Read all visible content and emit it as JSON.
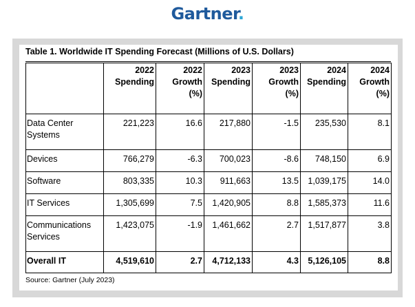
{
  "brand": {
    "logo_text": "Gartner",
    "logo_dot": "."
  },
  "table": {
    "title": "Table 1. Worldwide IT Spending Forecast (Millions of U.S. Dollars)",
    "headers": [
      "",
      "2022 Spending",
      "2022 Growth (%)",
      "2023 Spending",
      "2023 Growth (%)",
      "2024 Spending",
      "2024 Growth (%)"
    ],
    "rows": [
      [
        "Data Center Systems",
        "221,223",
        "16.6",
        "217,880",
        "-1.5",
        "235,530",
        "8.1"
      ],
      [
        "Devices",
        "766,279",
        "-6.3",
        "700,023",
        "-8.6",
        "748,150",
        "6.9"
      ],
      [
        "Software",
        "803,335",
        "10.3",
        "911,663",
        "13.5",
        "1,039,175",
        "14.0"
      ],
      [
        "IT Services",
        "1,305,699",
        "7.5",
        "1,420,905",
        "8.8",
        "1,585,373",
        "11.6"
      ],
      [
        "Communications Services",
        "1,423,075",
        "-1.9",
        "1,461,662",
        "2.7",
        "1,517,877",
        "3.8"
      ],
      [
        "Overall IT",
        "4,519,610",
        "2.7",
        "4,712,133",
        "4.3",
        "5,126,105",
        "8.8"
      ]
    ],
    "source": "Source: Gartner (July 2023)"
  },
  "colors": {
    "logo": "#1f5a9c",
    "logo_dot": "#2ea7d6",
    "frame": "#d8d8d8"
  }
}
